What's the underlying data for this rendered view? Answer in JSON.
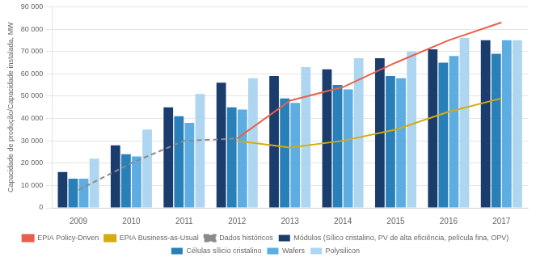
{
  "chart_data": {
    "type": "bar",
    "categories": [
      2009,
      2010,
      2011,
      2012,
      2013,
      2014,
      2015,
      2016,
      2017
    ],
    "ylabel": "Capacidade de produção/Capacidade instalada, MW",
    "ylim": [
      0,
      90000
    ],
    "yticks": [
      0,
      {
        "value": 10000,
        "label": "10 000"
      },
      {
        "value": 20000,
        "label": "20 000"
      },
      {
        "value": 30000,
        "label": "30 000"
      },
      {
        "value": 40000,
        "label": "40 000"
      },
      {
        "value": 50000,
        "label": "50 000"
      },
      {
        "value": 60000,
        "label": "60 000"
      },
      {
        "value": 70000,
        "label": "70 000"
      },
      {
        "value": 80000,
        "label": "80 000"
      },
      {
        "value": 90000,
        "label": "90 000"
      }
    ],
    "grid": true,
    "legend": "bottom",
    "series": [
      {
        "name": "Módulos (Sílico cristalino, PV de alta eficiência, película fina, OPV)",
        "type": "bar",
        "color": "#1b3d6e",
        "values": [
          16000,
          28000,
          45000,
          56000,
          59000,
          62000,
          67000,
          71000,
          75000
        ]
      },
      {
        "name": "Células sílicio cristalino",
        "type": "bar",
        "color": "#2980b9",
        "values": [
          13000,
          24000,
          41000,
          45000,
          49000,
          55000,
          59000,
          65000,
          69000
        ]
      },
      {
        "name": "Wafers",
        "type": "bar",
        "color": "#5dade2",
        "values": [
          13000,
          23000,
          38000,
          44000,
          47000,
          53000,
          58000,
          68000,
          75000
        ]
      },
      {
        "name": "Polysilicon",
        "type": "bar",
        "color": "#aed6f1",
        "values": [
          22000,
          35000,
          51000,
          58000,
          63000,
          67000,
          70000,
          76000,
          75000
        ]
      },
      {
        "name": "EPIA Policy-Driven",
        "type": "line",
        "color": "#e8604c",
        "line_style": "solid",
        "values": [
          null,
          null,
          null,
          31000,
          48000,
          54000,
          65000,
          75000,
          83000
        ]
      },
      {
        "name": "EPIA Business-as-Usual",
        "type": "line",
        "color": "#d4ac0d",
        "line_style": "solid",
        "values": [
          null,
          null,
          null,
          30000,
          27000,
          30000,
          35000,
          43000,
          49000
        ]
      },
      {
        "name": "Dados históricos",
        "type": "line",
        "color": "#8a8a8a",
        "line_style": "dashed",
        "values": [
          8000,
          20000,
          30000,
          31000,
          null,
          null,
          null,
          null,
          null
        ]
      }
    ]
  }
}
